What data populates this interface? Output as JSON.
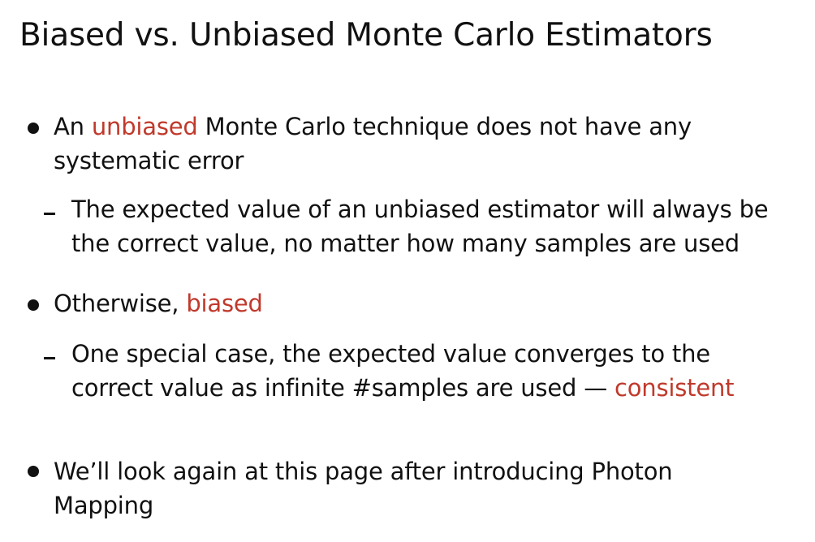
{
  "title": "Biased vs. Unbiased Monte Carlo Estimators",
  "accent_color": "#c0392b",
  "bullets": [
    {
      "line1_pre": "An ",
      "line1_hl": "unbiased",
      "line1_post": " Monte Carlo technique does not have any",
      "line2": "systematic error",
      "sub": {
        "line1": "The expected value of an unbiased estimator will always be",
        "line2": "the correct value, no matter how many samples are used"
      }
    },
    {
      "line1_pre": "Otherwise, ",
      "line1_hl": "biased",
      "sub": {
        "line1": "One special case, the expected value converges to the",
        "line2_pre": "correct value as infinite #samples are used — ",
        "line2_hl": "consistent"
      }
    },
    {
      "line1": "We’ll look again at this page after introducing Photon",
      "line2": "Mapping"
    }
  ]
}
